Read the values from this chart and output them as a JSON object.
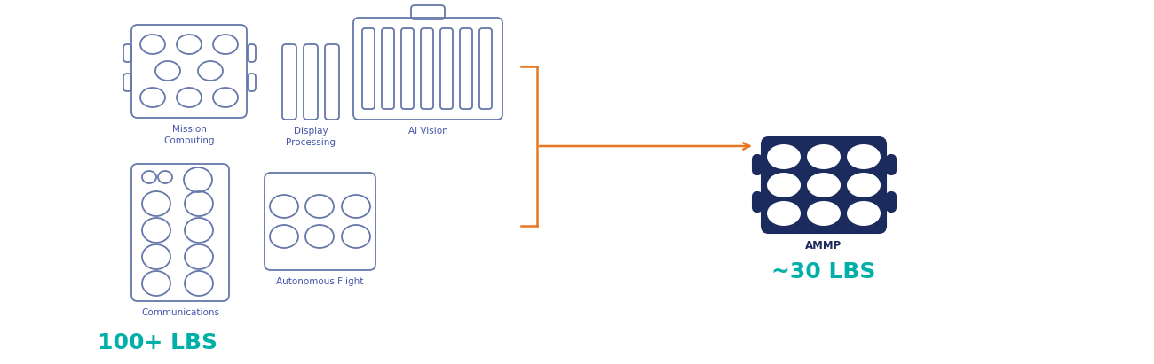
{
  "bg_color": "#ffffff",
  "outline_color": "#6677aa",
  "dark_navy": "#1c2b5e",
  "orange": "#e87722",
  "teal": "#00b0a8",
  "label_color": "#4455aa",
  "ammp_label_color": "#1c2b5e",
  "lbs_100_text": "100+ LBS",
  "lbs_30_text": "~30 LBS",
  "ammp_text": "AMMP",
  "fig_w": 13.0,
  "fig_h": 4.11,
  "dpi": 100
}
